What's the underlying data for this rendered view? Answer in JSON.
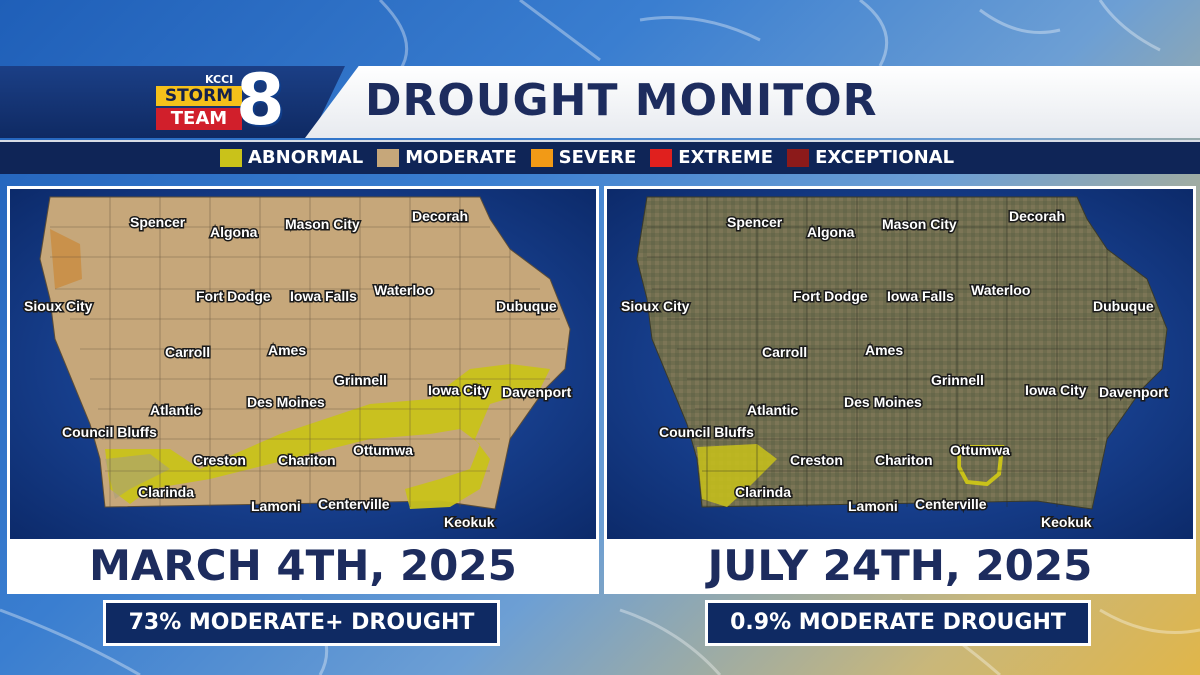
{
  "header": {
    "title": "DROUGHT MONITOR",
    "logo": {
      "kcci": "KCCI",
      "storm": "STORM",
      "team": "TEAM",
      "number": "8"
    }
  },
  "legend": [
    {
      "label": "ABNORMAL",
      "color": "#c9c21a"
    },
    {
      "label": "MODERATE",
      "color": "#c6a77a"
    },
    {
      "label": "SEVERE",
      "color": "#f29a16"
    },
    {
      "label": "EXTREME",
      "color": "#e0201e"
    },
    {
      "label": "EXCEPTIONAL",
      "color": "#8c1a1a"
    }
  ],
  "cities": [
    "Spencer",
    "Algona",
    "Mason City",
    "Decorah",
    "Sioux City",
    "Fort Dodge",
    "Iowa Falls",
    "Waterloo",
    "Dubuque",
    "Carroll",
    "Ames",
    "Grinnell",
    "Iowa City",
    "Davenport",
    "Atlantic",
    "Des Moines",
    "Council Bluffs",
    "Creston",
    "Chariton",
    "Ottumwa",
    "Clarinda",
    "Lamoni",
    "Centerville",
    "Keokuk"
  ],
  "panels": [
    {
      "date": "MARCH 4TH, 2025",
      "stat": "73% MODERATE+ DROUGHT"
    },
    {
      "date": "JULY 24TH, 2025",
      "stat": "0.9% MODERATE DROUGHT"
    }
  ]
}
